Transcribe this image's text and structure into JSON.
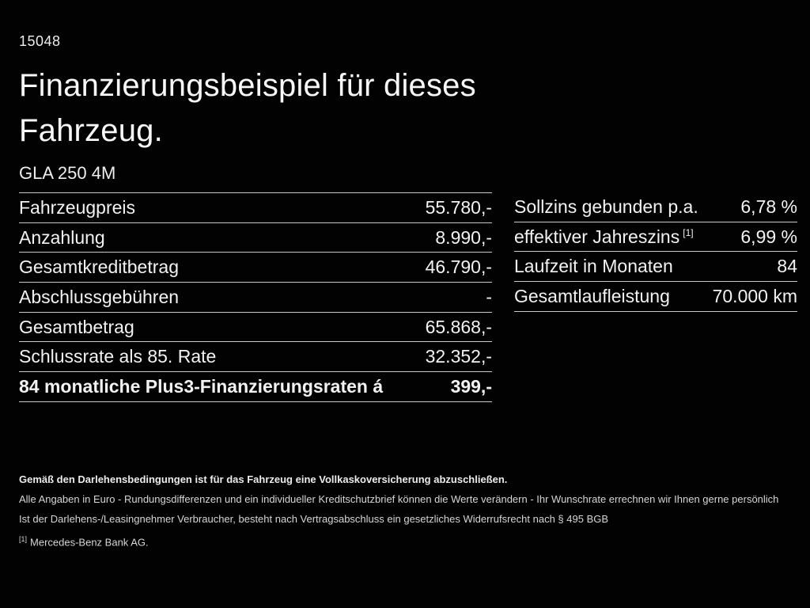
{
  "colors": {
    "background": "#020202",
    "text": "#f2f2f2",
    "divider": "#c9c9c9",
    "fine_print": "#d6d6d6"
  },
  "header": {
    "code": "15048",
    "title_line1": "Finanzierungsbeispiel für dieses",
    "title_line2": "Fahrzeug.",
    "model": "GLA 250 4M"
  },
  "finance_table": {
    "rows": [
      {
        "label": "Fahrzeugpreis",
        "value": "55.780,-"
      },
      {
        "label": "Anzahlung",
        "value": "8.990,-"
      },
      {
        "label": "Gesamtkreditbetrag",
        "value": "46.790,-"
      },
      {
        "label": "Abschlussgebühren",
        "value": "-"
      },
      {
        "label": "Gesamtbetrag",
        "value": "65.868,-"
      },
      {
        "label": "Schlussrate als 85. Rate",
        "value": "32.352,-"
      },
      {
        "label": "84 monatliche Plus3-Finanzierungsraten á",
        "value": "399,-"
      }
    ]
  },
  "conditions_table": {
    "rows": [
      {
        "label": "Sollzins gebunden p.a.",
        "sup": "",
        "value": "6,78 %"
      },
      {
        "label": "effektiver Jahreszins",
        "sup": "[1]",
        "value": "6,99 %"
      },
      {
        "label": "Laufzeit in Monaten",
        "sup": "",
        "value": "84"
      },
      {
        "label": "Gesamtlaufleistung",
        "sup": "",
        "value": "70.000 km"
      }
    ]
  },
  "footnotes": {
    "line1_bold": "Gemäß den Darlehensbedingungen ist für das Fahrzeug eine Vollkaskoversicherung abzuschließen.",
    "line2": "Alle Angaben in Euro - Rundungsdifferenzen und ein individueller Kreditschutzbrief können die Werte verändern - Ihr Wunschrate errechnen wir Ihnen gerne persönlich",
    "line3": "Ist der Darlehens-/Leasingnehmer Verbraucher, besteht nach Vertragsabschluss ein gesetzliches Widerrufsrecht nach § 495 BGB",
    "line4_sup": "[1]",
    "line4": "Mercedes-Benz Bank AG."
  }
}
